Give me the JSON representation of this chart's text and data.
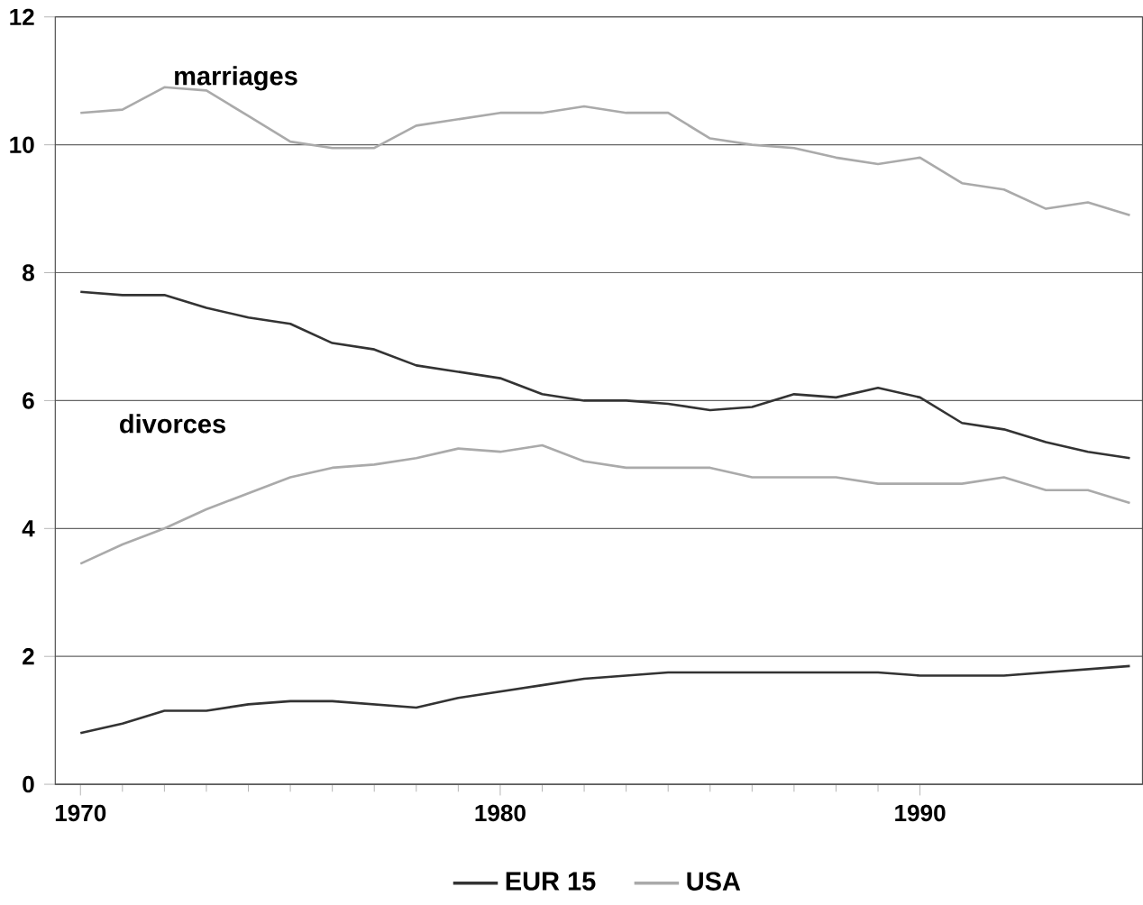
{
  "chart_data": {
    "type": "line",
    "x": [
      1970,
      1971,
      1972,
      1973,
      1974,
      1975,
      1976,
      1977,
      1978,
      1979,
      1980,
      1981,
      1982,
      1983,
      1984,
      1985,
      1986,
      1987,
      1988,
      1989,
      1990,
      1991,
      1992,
      1993,
      1994,
      1995
    ],
    "series": [
      {
        "name": "EUR 15",
        "color": "#333333",
        "values": [
          7.7,
          7.65,
          7.65,
          7.45,
          7.3,
          7.2,
          6.9,
          6.8,
          6.55,
          6.45,
          6.35,
          6.1,
          6.0,
          6.0,
          5.95,
          5.85,
          5.9,
          6.1,
          6.05,
          6.2,
          6.05,
          5.65,
          5.55,
          5.35,
          5.2,
          5.1
        ]
      },
      {
        "name": "USA",
        "color": "#aaaaaa",
        "values": [
          10.5,
          10.55,
          10.9,
          10.85,
          10.45,
          10.05,
          9.95,
          9.95,
          10.3,
          10.4,
          10.5,
          10.5,
          10.6,
          10.5,
          10.5,
          10.1,
          10.0,
          9.95,
          9.8,
          9.7,
          9.8,
          9.4,
          9.3,
          9.0,
          9.1,
          8.9
        ]
      },
      {
        "color": "#333333",
        "values": [
          0.8,
          0.95,
          1.15,
          1.15,
          1.25,
          1.3,
          1.3,
          1.25,
          1.2,
          1.35,
          1.45,
          1.55,
          1.65,
          1.7,
          1.75,
          1.75,
          1.75,
          1.75,
          1.75,
          1.75,
          1.7,
          1.7,
          1.7,
          1.75,
          1.8,
          1.85
        ]
      },
      {
        "color": "#aaaaaa",
        "values": [
          3.45,
          3.75,
          4.0,
          4.3,
          4.55,
          4.8,
          4.95,
          5.0,
          5.1,
          5.25,
          5.2,
          5.3,
          5.05,
          4.95,
          4.95,
          4.95,
          4.8,
          4.8,
          4.8,
          4.7,
          4.7,
          4.7,
          4.8,
          4.6,
          4.6,
          4.4
        ]
      }
    ],
    "annotations": [
      "marriages",
      "divorces"
    ],
    "xlim": [
      1969.4,
      1995.3
    ],
    "ylim": [
      0,
      12
    ],
    "xticks": [
      1970,
      1980,
      1990
    ],
    "yticks": [
      0,
      2,
      4,
      6,
      8,
      10,
      12
    ],
    "grid": "y",
    "legend": "bottom",
    "line_style": "solid",
    "marker": "none"
  }
}
